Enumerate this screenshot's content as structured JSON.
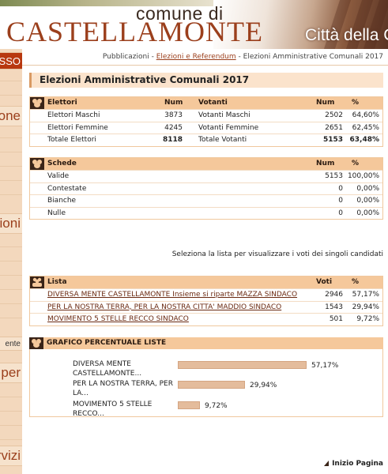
{
  "header": {
    "comune": "comune di",
    "logo": "CASTELLAMONTE",
    "citta": "Città della C"
  },
  "sidebar": {
    "accesso": "SSO",
    "items": [
      "one",
      "ioni",
      "ente",
      "per",
      "rvizi"
    ]
  },
  "breadcrumb": {
    "crumb1": "Pubblicazioni",
    "sep1": " - ",
    "crumb2": "Elezioni e Referendum",
    "sep2": " - ",
    "crumb3": "Elezioni Amministrative Comunali 2017"
  },
  "page_title": "Elezioni Amministrative Comunali 2017",
  "elettori_table": {
    "headers": {
      "elettori": "Elettori",
      "num1": "Num",
      "votanti": "Votanti",
      "num2": "Num",
      "pct": "%"
    },
    "rows": [
      {
        "label": "Elettori Maschi",
        "num": "3873",
        "vlabel": "Votanti Maschi",
        "vnum": "2502",
        "pct": "64,60%"
      },
      {
        "label": "Elettori Femmine",
        "num": "4245",
        "vlabel": "Votanti Femmine",
        "vnum": "2651",
        "pct": "62,45%"
      },
      {
        "label": "Totale Elettori",
        "num": "8118",
        "vlabel": "Totale Votanti",
        "vnum": "5153",
        "pct": "63,48%"
      }
    ]
  },
  "schede_table": {
    "headers": {
      "schede": "Schede",
      "num": "Num",
      "pct": "%"
    },
    "rows": [
      {
        "label": "Valide",
        "num": "5153",
        "pct": "100,00%"
      },
      {
        "label": "Contestate",
        "num": "0",
        "pct": "0,00%"
      },
      {
        "label": "Bianche",
        "num": "0",
        "pct": "0,00%"
      },
      {
        "label": "Nulle",
        "num": "0",
        "pct": "0,00%"
      }
    ]
  },
  "hint": "Seleziona la lista per visualizzare i voti dei singoli candidati",
  "liste_table": {
    "headers": {
      "lista": "Lista",
      "voti": "Voti",
      "pct": "%"
    },
    "rows": [
      {
        "label": "DIVERSA MENTE CASTELLAMONTE Insieme si riparte MAZZA SINDACO",
        "voti": "2946",
        "pct": "57,17%"
      },
      {
        "label": "PER LA NOSTRA TERRA, PER LA NOSTRA CITTA' MADDIO SINDACO",
        "voti": "1543",
        "pct": "29,94%"
      },
      {
        "label": "MOVIMENTO 5 STELLE RECCO SINDACO",
        "voti": "501",
        "pct": "9,72%"
      }
    ]
  },
  "chart_title": "GRAFICO PERCENTUALE LISTE",
  "chart_data": {
    "type": "bar",
    "orientation": "horizontal",
    "categories": [
      "DIVERSA MENTE CASTELLAMONTE...",
      "PER LA NOSTRA TERRA, PER LA...",
      "MOVIMENTO 5 STELLE RECCO..."
    ],
    "values": [
      57.17,
      29.94,
      9.72
    ],
    "value_labels": [
      "57,17%",
      "29,94%",
      "9,72%"
    ],
    "colors": {
      "bar": "#e4bc9c",
      "border": "#d4a582"
    }
  },
  "footer": {
    "top_link": "Inizio Pagina"
  },
  "colors": {
    "accent": "#9b3f1c",
    "header_bg": "#f5c89b",
    "title_bg": "#fbe3cc"
  }
}
